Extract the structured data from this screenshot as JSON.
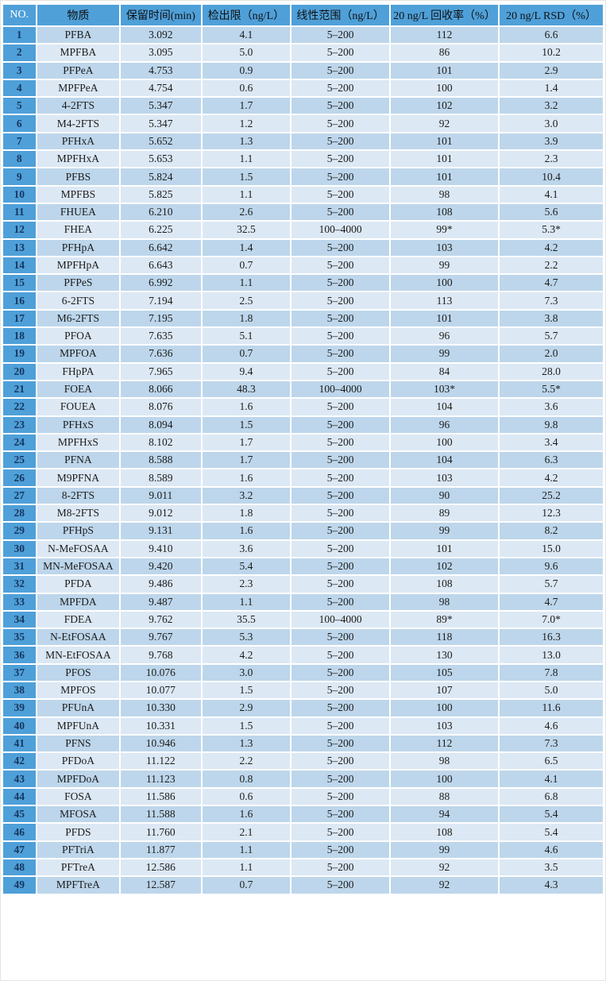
{
  "colors": {
    "header_bg": "#4FA0D9",
    "no_col_bg": "#4FA0D9",
    "row_odd": "#BDD6EB",
    "row_even": "#DCE8F4",
    "no_text": "#17365D",
    "header_text": "#111111",
    "no_header_text": "#FFFFFF",
    "body_text": "#1B1B1B",
    "separator": "#FFFFFF"
  },
  "table": {
    "columns": [
      {
        "key": "no",
        "label": "NO."
      },
      {
        "key": "substance",
        "label": "物质"
      },
      {
        "key": "retention_time",
        "label": "保留时间(min)"
      },
      {
        "key": "lod",
        "label": "检出限（ng/L）"
      },
      {
        "key": "linear_range",
        "label": "线性范围（ng/L）"
      },
      {
        "key": "recovery",
        "label": "20 ng/L 回收率（%）"
      },
      {
        "key": "rsd",
        "label": "20 ng/L RSD（%）"
      }
    ],
    "rows": [
      {
        "no": "1",
        "substance": "PFBA",
        "retention_time": "3.092",
        "lod": "4.1",
        "linear_range": "5–200",
        "recovery": "112",
        "rsd": "6.6"
      },
      {
        "no": "2",
        "substance": "MPFBA",
        "retention_time": "3.095",
        "lod": "5.0",
        "linear_range": "5–200",
        "recovery": "86",
        "rsd": "10.2"
      },
      {
        "no": "3",
        "substance": "PFPeA",
        "retention_time": "4.753",
        "lod": "0.9",
        "linear_range": "5–200",
        "recovery": "101",
        "rsd": "2.9"
      },
      {
        "no": "4",
        "substance": "MPFPeA",
        "retention_time": "4.754",
        "lod": "0.6",
        "linear_range": "5–200",
        "recovery": "100",
        "rsd": "1.4"
      },
      {
        "no": "5",
        "substance": "4-2FTS",
        "retention_time": "5.347",
        "lod": "1.7",
        "linear_range": "5–200",
        "recovery": "102",
        "rsd": "3.2"
      },
      {
        "no": "6",
        "substance": "M4-2FTS",
        "retention_time": "5.347",
        "lod": "1.2",
        "linear_range": "5–200",
        "recovery": "92",
        "rsd": "3.0"
      },
      {
        "no": "7",
        "substance": "PFHxA",
        "retention_time": "5.652",
        "lod": "1.3",
        "linear_range": "5–200",
        "recovery": "101",
        "rsd": "3.9"
      },
      {
        "no": "8",
        "substance": "MPFHxA",
        "retention_time": "5.653",
        "lod": "1.1",
        "linear_range": "5–200",
        "recovery": "101",
        "rsd": "2.3"
      },
      {
        "no": "9",
        "substance": "PFBS",
        "retention_time": "5.824",
        "lod": "1.5",
        "linear_range": "5–200",
        "recovery": "101",
        "rsd": "10.4"
      },
      {
        "no": "10",
        "substance": "MPFBS",
        "retention_time": "5.825",
        "lod": "1.1",
        "linear_range": "5–200",
        "recovery": "98",
        "rsd": "4.1"
      },
      {
        "no": "11",
        "substance": "FHUEA",
        "retention_time": "6.210",
        "lod": "2.6",
        "linear_range": "5–200",
        "recovery": "108",
        "rsd": "5.6"
      },
      {
        "no": "12",
        "substance": "FHEA",
        "retention_time": "6.225",
        "lod": "32.5",
        "linear_range": "100–4000",
        "recovery": "99*",
        "rsd": "5.3*"
      },
      {
        "no": "13",
        "substance": "PFHpA",
        "retention_time": "6.642",
        "lod": "1.4",
        "linear_range": "5–200",
        "recovery": "103",
        "rsd": "4.2"
      },
      {
        "no": "14",
        "substance": "MPFHpA",
        "retention_time": "6.643",
        "lod": "0.7",
        "linear_range": "5–200",
        "recovery": "99",
        "rsd": "2.2"
      },
      {
        "no": "15",
        "substance": "PFPeS",
        "retention_time": "6.992",
        "lod": "1.1",
        "linear_range": "5–200",
        "recovery": "100",
        "rsd": "4.7"
      },
      {
        "no": "16",
        "substance": "6-2FTS",
        "retention_time": "7.194",
        "lod": "2.5",
        "linear_range": "5–200",
        "recovery": "113",
        "rsd": "7.3"
      },
      {
        "no": "17",
        "substance": "M6-2FTS",
        "retention_time": "7.195",
        "lod": "1.8",
        "linear_range": "5–200",
        "recovery": "101",
        "rsd": "3.8"
      },
      {
        "no": "18",
        "substance": "PFOA",
        "retention_time": "7.635",
        "lod": "5.1",
        "linear_range": "5–200",
        "recovery": "96",
        "rsd": "5.7"
      },
      {
        "no": "19",
        "substance": "MPFOA",
        "retention_time": "7.636",
        "lod": "0.7",
        "linear_range": "5–200",
        "recovery": "99",
        "rsd": "2.0"
      },
      {
        "no": "20",
        "substance": "FHpPA",
        "retention_time": "7.965",
        "lod": "9.4",
        "linear_range": "5–200",
        "recovery": "84",
        "rsd": "28.0"
      },
      {
        "no": "21",
        "substance": "FOEA",
        "retention_time": "8.066",
        "lod": "48.3",
        "linear_range": "100–4000",
        "recovery": "103*",
        "rsd": "5.5*"
      },
      {
        "no": "22",
        "substance": "FOUEA",
        "retention_time": "8.076",
        "lod": "1.6",
        "linear_range": "5–200",
        "recovery": "104",
        "rsd": "3.6"
      },
      {
        "no": "23",
        "substance": "PFHxS",
        "retention_time": "8.094",
        "lod": "1.5",
        "linear_range": "5–200",
        "recovery": "96",
        "rsd": "9.8"
      },
      {
        "no": "24",
        "substance": "MPFHxS",
        "retention_time": "8.102",
        "lod": "1.7",
        "linear_range": "5–200",
        "recovery": "100",
        "rsd": "3.4"
      },
      {
        "no": "25",
        "substance": "PFNA",
        "retention_time": "8.588",
        "lod": "1.7",
        "linear_range": "5–200",
        "recovery": "104",
        "rsd": "6.3"
      },
      {
        "no": "26",
        "substance": "M9PFNA",
        "retention_time": "8.589",
        "lod": "1.6",
        "linear_range": "5–200",
        "recovery": "103",
        "rsd": "4.2"
      },
      {
        "no": "27",
        "substance": "8-2FTS",
        "retention_time": "9.011",
        "lod": "3.2",
        "linear_range": "5–200",
        "recovery": "90",
        "rsd": "25.2"
      },
      {
        "no": "28",
        "substance": "M8-2FTS",
        "retention_time": "9.012",
        "lod": "1.8",
        "linear_range": "5–200",
        "recovery": "89",
        "rsd": "12.3"
      },
      {
        "no": "29",
        "substance": "PFHpS",
        "retention_time": "9.131",
        "lod": "1.6",
        "linear_range": "5–200",
        "recovery": "99",
        "rsd": "8.2"
      },
      {
        "no": "30",
        "substance": "N-MeFOSAA",
        "retention_time": "9.410",
        "lod": "3.6",
        "linear_range": "5–200",
        "recovery": "101",
        "rsd": "15.0"
      },
      {
        "no": "31",
        "substance": "MN-MeFOSAA",
        "retention_time": "9.420",
        "lod": "5.4",
        "linear_range": "5–200",
        "recovery": "102",
        "rsd": "9.6"
      },
      {
        "no": "32",
        "substance": "PFDA",
        "retention_time": "9.486",
        "lod": "2.3",
        "linear_range": "5–200",
        "recovery": "108",
        "rsd": "5.7"
      },
      {
        "no": "33",
        "substance": "MPFDA",
        "retention_time": "9.487",
        "lod": "1.1",
        "linear_range": "5–200",
        "recovery": "98",
        "rsd": "4.7"
      },
      {
        "no": "34",
        "substance": "FDEA",
        "retention_time": "9.762",
        "lod": "35.5",
        "linear_range": "100–4000",
        "recovery": "89*",
        "rsd": "7.0*"
      },
      {
        "no": "35",
        "substance": "N-EtFOSAA",
        "retention_time": "9.767",
        "lod": "5.3",
        "linear_range": "5–200",
        "recovery": "118",
        "rsd": "16.3"
      },
      {
        "no": "36",
        "substance": "MN-EtFOSAA",
        "retention_time": "9.768",
        "lod": "4.2",
        "linear_range": "5–200",
        "recovery": "130",
        "rsd": "13.0"
      },
      {
        "no": "37",
        "substance": "PFOS",
        "retention_time": "10.076",
        "lod": "3.0",
        "linear_range": "5–200",
        "recovery": "105",
        "rsd": "7.8"
      },
      {
        "no": "38",
        "substance": "MPFOS",
        "retention_time": "10.077",
        "lod": "1.5",
        "linear_range": "5–200",
        "recovery": "107",
        "rsd": "5.0"
      },
      {
        "no": "39",
        "substance": "PFUnA",
        "retention_time": "10.330",
        "lod": "2.9",
        "linear_range": "5–200",
        "recovery": "100",
        "rsd": "11.6"
      },
      {
        "no": "40",
        "substance": "MPFUnA",
        "retention_time": "10.331",
        "lod": "1.5",
        "linear_range": "5–200",
        "recovery": "103",
        "rsd": "4.6"
      },
      {
        "no": "41",
        "substance": "PFNS",
        "retention_time": "10.946",
        "lod": "1.3",
        "linear_range": "5–200",
        "recovery": "112",
        "rsd": "7.3"
      },
      {
        "no": "42",
        "substance": "PFDoA",
        "retention_time": "11.122",
        "lod": "2.2",
        "linear_range": "5–200",
        "recovery": "98",
        "rsd": "6.5"
      },
      {
        "no": "43",
        "substance": "MPFDoA",
        "retention_time": "11.123",
        "lod": "0.8",
        "linear_range": "5–200",
        "recovery": "100",
        "rsd": "4.1"
      },
      {
        "no": "44",
        "substance": "FOSA",
        "retention_time": "11.586",
        "lod": "0.6",
        "linear_range": "5–200",
        "recovery": "88",
        "rsd": "6.8"
      },
      {
        "no": "45",
        "substance": "MFOSA",
        "retention_time": "11.588",
        "lod": "1.6",
        "linear_range": "5–200",
        "recovery": "94",
        "rsd": "5.4"
      },
      {
        "no": "46",
        "substance": "PFDS",
        "retention_time": "11.760",
        "lod": "2.1",
        "linear_range": "5–200",
        "recovery": "108",
        "rsd": "5.4"
      },
      {
        "no": "47",
        "substance": "PFTriA",
        "retention_time": "11.877",
        "lod": "1.1",
        "linear_range": "5–200",
        "recovery": "99",
        "rsd": "4.6"
      },
      {
        "no": "48",
        "substance": "PFTreA",
        "retention_time": "12.586",
        "lod": "1.1",
        "linear_range": "5–200",
        "recovery": "92",
        "rsd": "3.5"
      },
      {
        "no": "49",
        "substance": "MPFTreA",
        "retention_time": "12.587",
        "lod": "0.7",
        "linear_range": "5–200",
        "recovery": "92",
        "rsd": "4.3"
      }
    ]
  }
}
